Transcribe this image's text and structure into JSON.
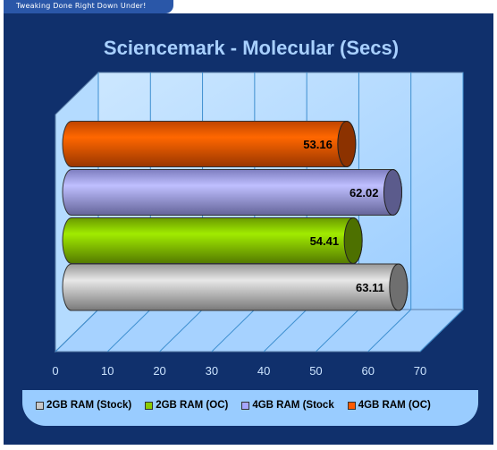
{
  "banner": {
    "text": "Tweaking Done Right Down Under!"
  },
  "chart_data": {
    "type": "bar",
    "orientation": "horizontal",
    "title": "Sciencemark - Molecular (Secs)",
    "xlim": [
      0,
      70
    ],
    "xticks": [
      "0",
      "10",
      "20",
      "30",
      "40",
      "50",
      "60",
      "70"
    ],
    "categories": [
      "2GB RAM (Stock)",
      "2GB RAM (OC)",
      "4GB RAM (Stock",
      "4GB RAM (OC)"
    ],
    "values": [
      63.11,
      54.41,
      62.02,
      53.16
    ],
    "value_labels": [
      "63.11",
      "54.41",
      "62.02",
      "53.16"
    ],
    "colors": [
      "#c9c9c9",
      "#8ccc00",
      "#a6a6ff",
      "#ff5a00"
    ],
    "grid": true,
    "legend_position": "bottom"
  }
}
